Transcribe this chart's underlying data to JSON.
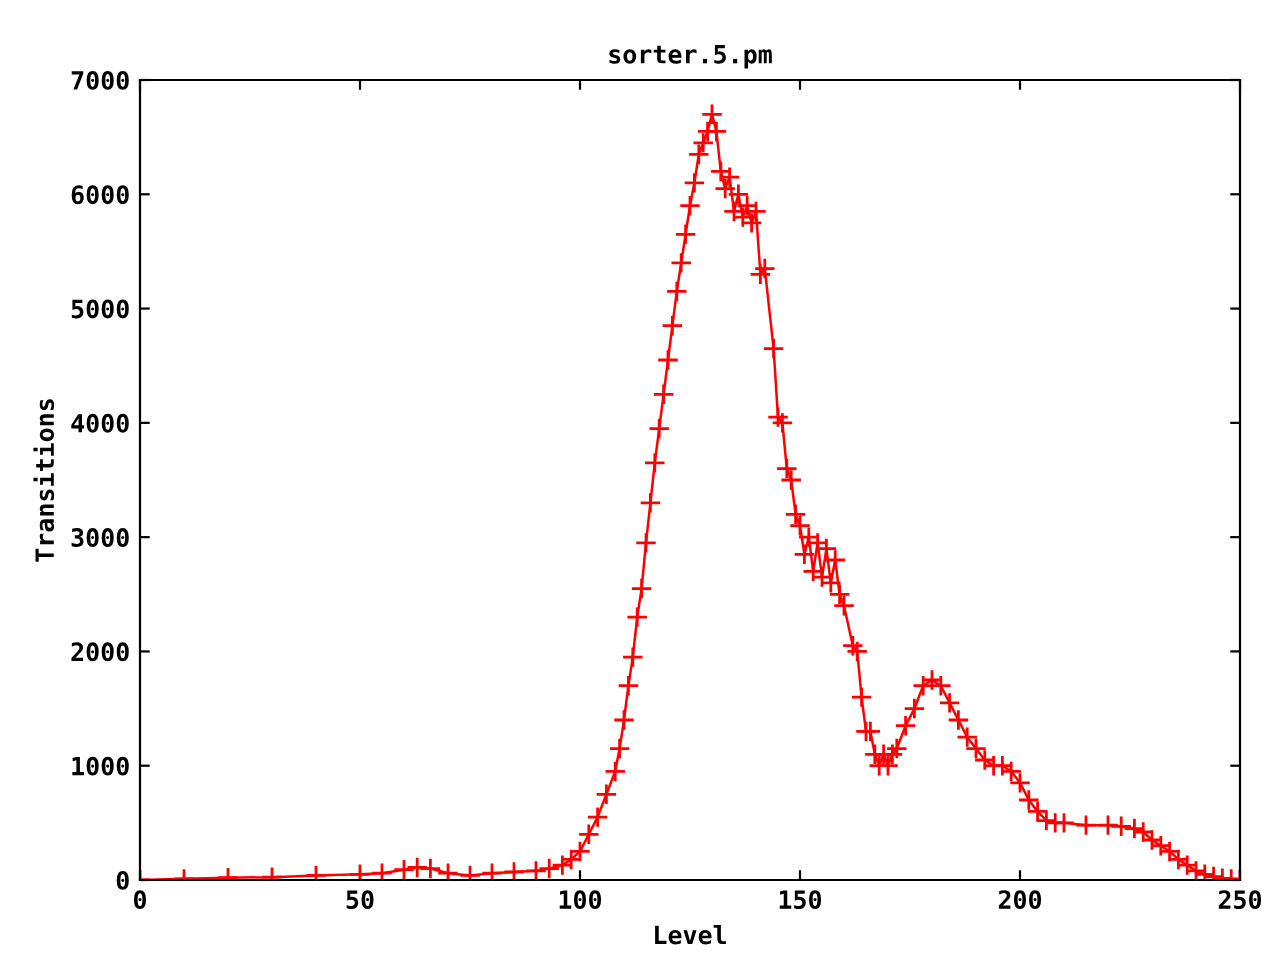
{
  "chart_data": {
    "type": "line",
    "title": "sorter.5.pm",
    "xlabel": "Level",
    "ylabel": "Transitions",
    "series": [
      {
        "color": "#ff0000",
        "x": [
          0,
          10,
          20,
          30,
          40,
          50,
          55,
          60,
          63,
          66,
          70,
          75,
          80,
          85,
          90,
          93,
          96,
          98,
          100,
          102,
          104,
          106,
          108,
          109,
          110,
          111,
          112,
          113,
          114,
          115,
          116,
          117,
          118,
          119,
          120,
          121,
          122,
          123,
          124,
          125,
          126,
          127,
          128,
          129,
          130,
          131,
          132,
          133,
          134,
          135,
          136,
          137,
          138,
          139,
          140,
          141,
          142,
          144,
          145,
          146,
          147,
          148,
          149,
          150,
          151,
          152,
          153,
          154,
          155,
          156,
          157,
          158,
          159,
          160,
          162,
          163,
          164,
          165,
          166,
          167,
          168,
          169,
          170,
          171,
          172,
          174,
          176,
          178,
          180,
          182,
          184,
          186,
          188,
          190,
          192,
          194,
          196,
          198,
          200,
          202,
          204,
          206,
          208,
          210,
          215,
          220,
          223,
          226,
          228,
          230,
          232,
          234,
          236,
          238,
          240,
          242,
          244,
          246,
          248,
          250
        ],
        "values": [
          0,
          10,
          20,
          25,
          40,
          50,
          60,
          90,
          110,
          100,
          60,
          40,
          60,
          70,
          80,
          100,
          130,
          180,
          250,
          400,
          550,
          750,
          950,
          1150,
          1400,
          1700,
          1950,
          2300,
          2550,
          2950,
          3300,
          3650,
          3950,
          4250,
          4550,
          4850,
          5150,
          5400,
          5650,
          5900,
          6100,
          6350,
          6450,
          6550,
          6700,
          6550,
          6200,
          6050,
          6150,
          5850,
          6000,
          5800,
          5900,
          5750,
          5850,
          5300,
          5350,
          4650,
          4050,
          4000,
          3600,
          3500,
          3200,
          3100,
          2850,
          3000,
          2700,
          2950,
          2650,
          2900,
          2600,
          2800,
          2500,
          2400,
          2050,
          2000,
          1600,
          1300,
          1300,
          1100,
          1000,
          1100,
          1000,
          1100,
          1150,
          1350,
          1500,
          1700,
          1750,
          1700,
          1550,
          1400,
          1250,
          1150,
          1050,
          1000,
          1000,
          950,
          850,
          700,
          600,
          520,
          500,
          500,
          480,
          480,
          470,
          450,
          420,
          350,
          300,
          250,
          180,
          130,
          80,
          50,
          30,
          15,
          10,
          5
        ]
      }
    ],
    "marker": "cross",
    "line_style": "solid",
    "grid": false,
    "legend": false,
    "xlim": [
      0,
      250
    ],
    "xticks": [
      0,
      50,
      100,
      150,
      200,
      250
    ],
    "ylim": [
      0,
      7000
    ],
    "yticks": [
      0,
      1000,
      2000,
      3000,
      4000,
      5000,
      6000,
      7000
    ]
  }
}
